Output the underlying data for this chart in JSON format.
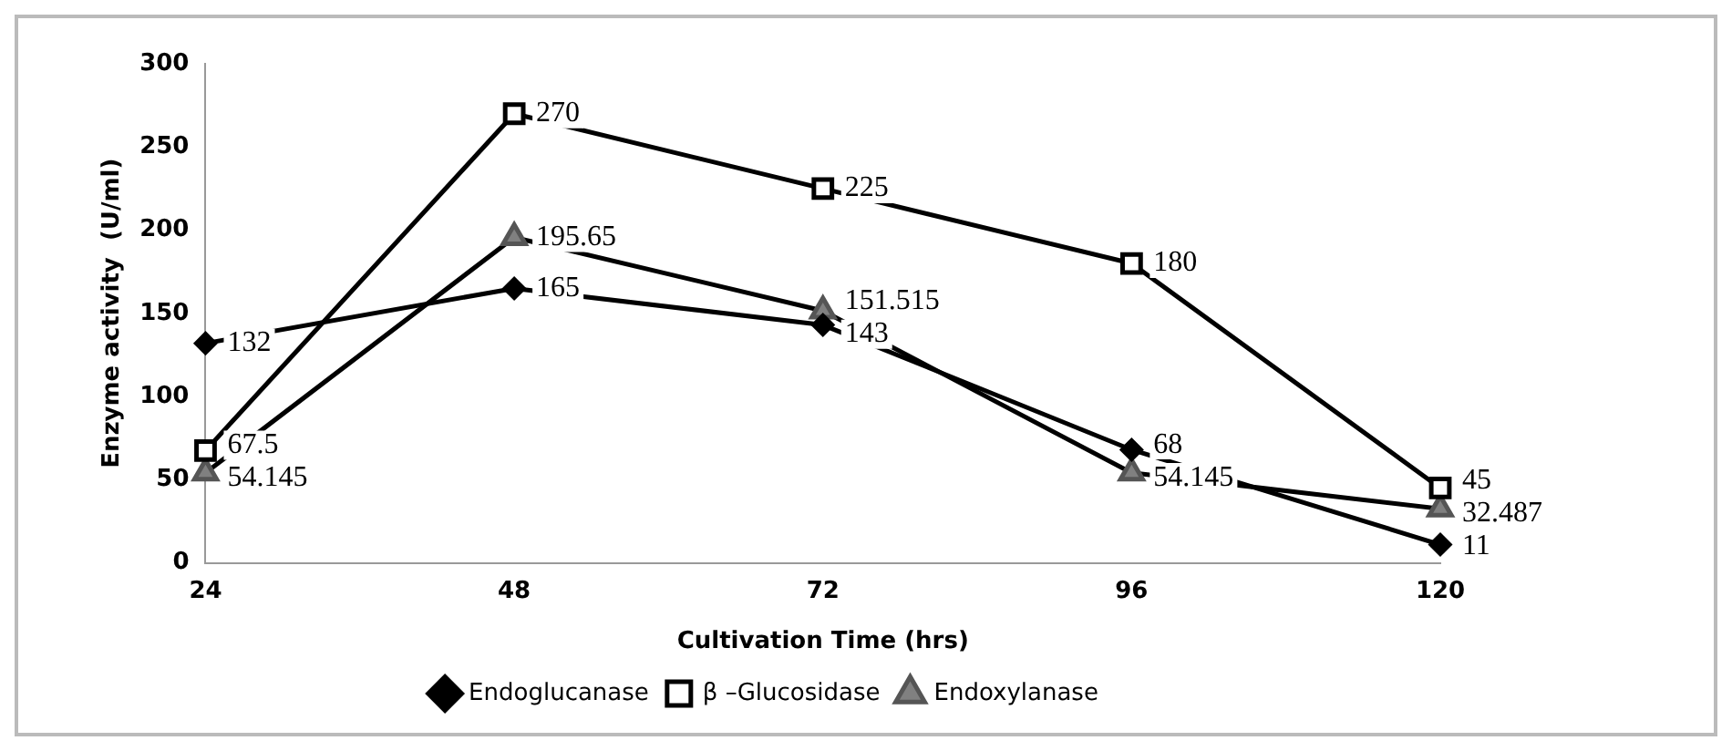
{
  "chart_data": {
    "type": "line",
    "xlabel": "Cultivation Time (hrs)",
    "ylabel": "Enzyme activity  (U/ml)",
    "categories": [
      "24",
      "48",
      "72",
      "96",
      "120"
    ],
    "series": [
      {
        "name": "Endoglucanase",
        "color": "#000000",
        "marker": "diamond",
        "values": [
          132,
          165,
          143,
          68,
          11
        ]
      },
      {
        "name": "β –Glucosidase",
        "color": "#000000",
        "marker": "square",
        "values": [
          67.5,
          270,
          225,
          180,
          45
        ]
      },
      {
        "name": "Endoxylanase",
        "color": "#000000",
        "marker": "triangle",
        "values": [
          54.145,
          195.65,
          151.515,
          54.145,
          32.487
        ]
      }
    ],
    "ylim": [
      0,
      300
    ],
    "yticks": [
      0,
      50,
      100,
      150,
      200,
      250,
      300
    ],
    "data_labels": true,
    "legend": "bottom",
    "grid": false,
    "line_style": "solid"
  }
}
